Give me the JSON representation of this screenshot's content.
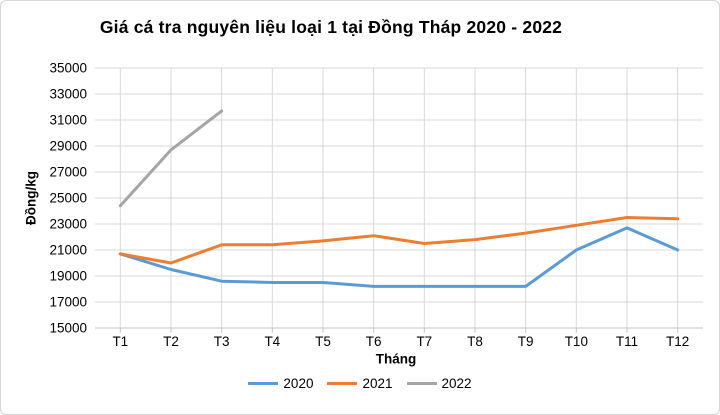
{
  "chart_data": {
    "type": "line",
    "title": "Giá cá tra nguyên liệu loại 1 tại Đồng Tháp 2020 - 2022",
    "xlabel": "Tháng",
    "ylabel": "Đồng/kg",
    "categories": [
      "T1",
      "T2",
      "T3",
      "T4",
      "T5",
      "T6",
      "T7",
      "T8",
      "T9",
      "T10",
      "T11",
      "T12"
    ],
    "series": [
      {
        "name": "2020",
        "color": "#5B9BD5",
        "values": [
          20700,
          19500,
          18600,
          18500,
          18500,
          18200,
          18200,
          18200,
          18200,
          21000,
          22700,
          21000
        ]
      },
      {
        "name": "2021",
        "color": "#ED7D31",
        "values": [
          20700,
          20000,
          21400,
          21400,
          21700,
          22100,
          21500,
          21800,
          22300,
          22900,
          23500,
          23400
        ]
      },
      {
        "name": "2022",
        "color": "#A5A5A5",
        "values": [
          24400,
          28700,
          31700,
          null,
          null,
          null,
          null,
          null,
          null,
          null,
          null,
          null
        ]
      }
    ],
    "ylim": [
      15000,
      35000
    ],
    "ytick_step": 2000,
    "grid": true,
    "legend_position": "bottom",
    "colors": {
      "gridline": "#D9D9D9",
      "axis_line": "#C6C6C6",
      "text": "#000000"
    }
  }
}
